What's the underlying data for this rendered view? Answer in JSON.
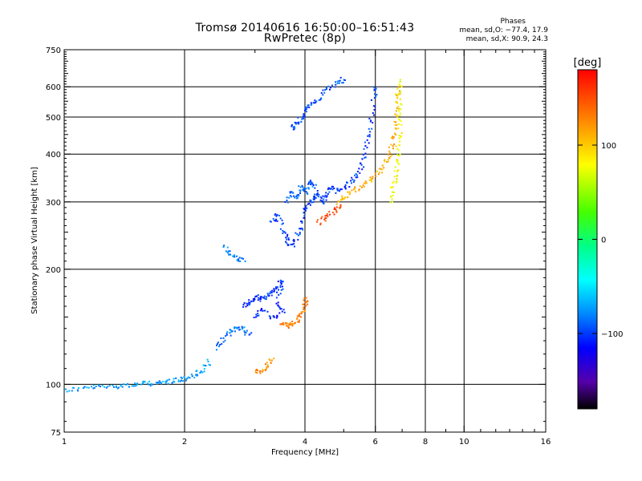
{
  "header": {
    "title_line1": "Tromsø 20140616 16:50:00–16:51:43",
    "title_line2": "RwPretec (8p)",
    "phases_title": "Phases",
    "phases_o": "mean, sd,O: −77.4, 17.9",
    "phases_x": "mean, sd,X:  90.9, 24.3"
  },
  "colorbar": {
    "unit": "[deg]",
    "ticks": [
      {
        "value": 100,
        "label": "100"
      },
      {
        "value": 0,
        "label": "0"
      },
      {
        "value": -100,
        "label": "−100"
      }
    ],
    "range": [
      -180,
      180
    ]
  },
  "chart_data": {
    "type": "scatter",
    "title": "Tromsø 20140616 16:50:00–16:51:43",
    "subtitle": "RwPretec (8p)",
    "xlabel": "Frequency [MHz]",
    "ylabel": "Stationary phase Virtual Height [km]",
    "xscale": "log",
    "yscale": "log",
    "xlim": [
      1,
      16
    ],
    "ylim": [
      75,
      750
    ],
    "xticks": [
      {
        "value": 1,
        "label": "1"
      },
      {
        "value": 2,
        "label": "2"
      },
      {
        "value": 4,
        "label": "4"
      },
      {
        "value": 6,
        "label": "6"
      },
      {
        "value": 8,
        "label": "8"
      },
      {
        "value": 10,
        "label": "10"
      },
      {
        "value": 16,
        "label": "16"
      }
    ],
    "xgrid": [
      2,
      4,
      6,
      8,
      10
    ],
    "xminor": [
      3,
      5,
      7,
      9,
      11,
      12,
      13,
      14,
      15
    ],
    "yticks": [
      {
        "value": 75,
        "label": "75"
      },
      {
        "value": 100,
        "label": "100"
      },
      {
        "value": 200,
        "label": "200"
      },
      {
        "value": 300,
        "label": "300"
      },
      {
        "value": 400,
        "label": "400"
      },
      {
        "value": 500,
        "label": "500"
      },
      {
        "value": 600,
        "label": "600"
      },
      {
        "value": 750,
        "label": "750"
      }
    ],
    "ygrid": [
      100,
      200,
      300,
      400,
      500,
      600
    ],
    "grid": true,
    "color_scale": "phase in degrees, −180 (black) → −100 (blue) → 0 (cyan/green) → 100 (yellow) → 180 (red)",
    "traces": [
      {
        "name": "",
        "phase": -75,
        "points": [
          [
            1.0,
            97
          ],
          [
            1.1,
            98
          ],
          [
            1.2,
            99
          ],
          [
            1.3,
            99
          ],
          [
            1.4,
            100
          ],
          [
            1.5,
            100
          ],
          [
            1.6,
            101
          ],
          [
            1.7,
            101
          ],
          [
            1.8,
            102
          ],
          [
            1.9,
            103
          ],
          [
            2.0,
            104
          ],
          [
            2.1,
            106
          ],
          [
            2.2,
            109
          ],
          [
            2.3,
            115
          ]
        ]
      },
      {
        "name": "",
        "phase": -85,
        "points": [
          [
            2.4,
            125
          ],
          [
            2.5,
            132
          ],
          [
            2.6,
            138
          ],
          [
            2.7,
            142
          ],
          [
            2.8,
            140
          ],
          [
            2.9,
            135
          ]
        ]
      },
      {
        "name": "",
        "phase": -105,
        "points": [
          [
            2.8,
            160
          ],
          [
            2.9,
            165
          ],
          [
            3.0,
            170
          ],
          [
            3.1,
            168
          ],
          [
            3.2,
            172
          ],
          [
            3.3,
            175
          ],
          [
            3.4,
            180
          ],
          [
            3.5,
            188
          ],
          [
            3.4,
            165
          ],
          [
            3.5,
            155
          ],
          [
            3.3,
            150
          ],
          [
            3.1,
            158
          ],
          [
            3.0,
            150
          ]
        ]
      },
      {
        "name": "",
        "phase": 130,
        "points": [
          [
            3.5,
            145
          ],
          [
            3.6,
            143
          ],
          [
            3.7,
            144
          ],
          [
            3.8,
            148
          ],
          [
            3.9,
            155
          ],
          [
            4.0,
            162
          ],
          [
            4.0,
            168
          ]
        ]
      },
      {
        "name": "",
        "phase": 125,
        "points": [
          [
            3.0,
            110
          ],
          [
            3.1,
            108
          ],
          [
            3.2,
            112
          ],
          [
            3.3,
            118
          ]
        ]
      },
      {
        "name": "",
        "phase": -80,
        "points": [
          [
            2.5,
            230
          ],
          [
            2.6,
            220
          ],
          [
            2.7,
            215
          ],
          [
            2.8,
            212
          ]
        ]
      },
      {
        "name": "",
        "phase": -100,
        "points": [
          [
            3.3,
            265
          ],
          [
            3.4,
            280
          ],
          [
            3.5,
            255
          ],
          [
            3.6,
            240
          ],
          [
            3.7,
            230
          ],
          [
            3.8,
            245
          ],
          [
            3.9,
            260
          ],
          [
            4.0,
            290
          ],
          [
            4.1,
            300
          ],
          [
            4.2,
            310
          ],
          [
            4.3,
            320
          ],
          [
            4.4,
            300
          ],
          [
            4.5,
            310
          ],
          [
            4.6,
            330
          ],
          [
            4.8,
            320
          ],
          [
            5.0,
            330
          ],
          [
            5.2,
            340
          ],
          [
            5.4,
            360
          ],
          [
            5.6,
            390
          ],
          [
            5.7,
            430
          ],
          [
            5.8,
            480
          ],
          [
            5.9,
            550
          ],
          [
            6.0,
            610
          ]
        ]
      },
      {
        "name": "",
        "phase": -90,
        "points": [
          [
            3.6,
            300
          ],
          [
            3.7,
            320
          ],
          [
            3.8,
            310
          ],
          [
            3.9,
            330
          ],
          [
            4.0,
            320
          ],
          [
            4.1,
            340
          ],
          [
            4.2,
            330
          ]
        ]
      },
      {
        "name": "",
        "phase": -95,
        "points": [
          [
            3.7,
            470
          ],
          [
            3.8,
            480
          ],
          [
            3.9,
            500
          ],
          [
            4.0,
            520
          ],
          [
            4.1,
            540
          ],
          [
            4.3,
            560
          ],
          [
            4.5,
            590
          ],
          [
            4.8,
            620
          ],
          [
            5.0,
            630
          ]
        ]
      },
      {
        "name": "",
        "phase": 150,
        "points": [
          [
            4.3,
            265
          ],
          [
            4.5,
            275
          ],
          [
            4.7,
            285
          ],
          [
            4.9,
            295
          ]
        ]
      },
      {
        "name": "",
        "phase": 110,
        "points": [
          [
            4.8,
            300
          ],
          [
            5.0,
            310
          ],
          [
            5.2,
            320
          ],
          [
            5.5,
            330
          ],
          [
            5.8,
            345
          ],
          [
            6.1,
            360
          ],
          [
            6.3,
            380
          ],
          [
            6.5,
            400
          ],
          [
            6.6,
            440
          ],
          [
            6.7,
            490
          ],
          [
            6.8,
            540
          ],
          [
            6.8,
            600
          ]
        ]
      },
      {
        "name": "",
        "phase": 80,
        "points": [
          [
            6.5,
            300
          ],
          [
            6.6,
            330
          ],
          [
            6.7,
            350
          ],
          [
            6.8,
            380
          ],
          [
            6.8,
            420
          ],
          [
            6.9,
            460
          ],
          [
            6.9,
            520
          ],
          [
            6.8,
            580
          ],
          [
            6.9,
            630
          ]
        ]
      }
    ]
  }
}
